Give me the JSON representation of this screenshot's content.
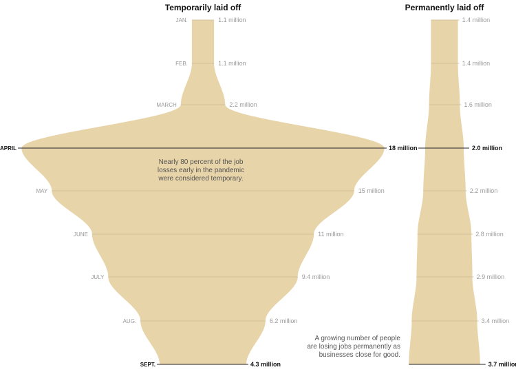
{
  "chart_data": [
    {
      "type": "area",
      "title": "Temporarily laid off",
      "months": [
        "JAN.",
        "FEB.",
        "MARCH",
        "APRIL",
        "MAY",
        "JUNE",
        "JULY",
        "AUG.",
        "SEPT."
      ],
      "values": [
        1.1,
        1.1,
        2.2,
        18,
        15,
        11,
        9.4,
        6.2,
        4.3
      ],
      "labels": [
        "1.1 million",
        "1.1 million",
        "2.2 million",
        "18 million",
        "15 million",
        "11 million",
        "9.4 million",
        "6.2 million",
        "4.3 million"
      ],
      "emphasized": [
        "APRIL",
        "SEPT."
      ],
      "unit": "million",
      "annotation": [
        "Nearly 80 percent of the job",
        "losses early in the pandemic",
        "were considered temporary."
      ]
    },
    {
      "type": "area",
      "title": "Permanently laid off",
      "months": [
        "JAN.",
        "FEB.",
        "MARCH",
        "APRIL",
        "MAY",
        "JUNE",
        "JULY",
        "AUG.",
        "SEPT."
      ],
      "values": [
        1.4,
        1.4,
        1.6,
        2.0,
        2.2,
        2.8,
        2.9,
        3.4,
        3.7
      ],
      "labels": [
        "1.4 million",
        "1.4 million",
        "1.6 million",
        "2.0 million",
        "2.2 million",
        "2.8 million",
        "2.9 million",
        "3.4 million",
        "3.7 million"
      ],
      "emphasized": [
        "APRIL",
        "SEPT."
      ],
      "unit": "million",
      "annotation": [
        "A growing number of people",
        "are losing jobs permanently as",
        "businesses close for good."
      ]
    }
  ]
}
